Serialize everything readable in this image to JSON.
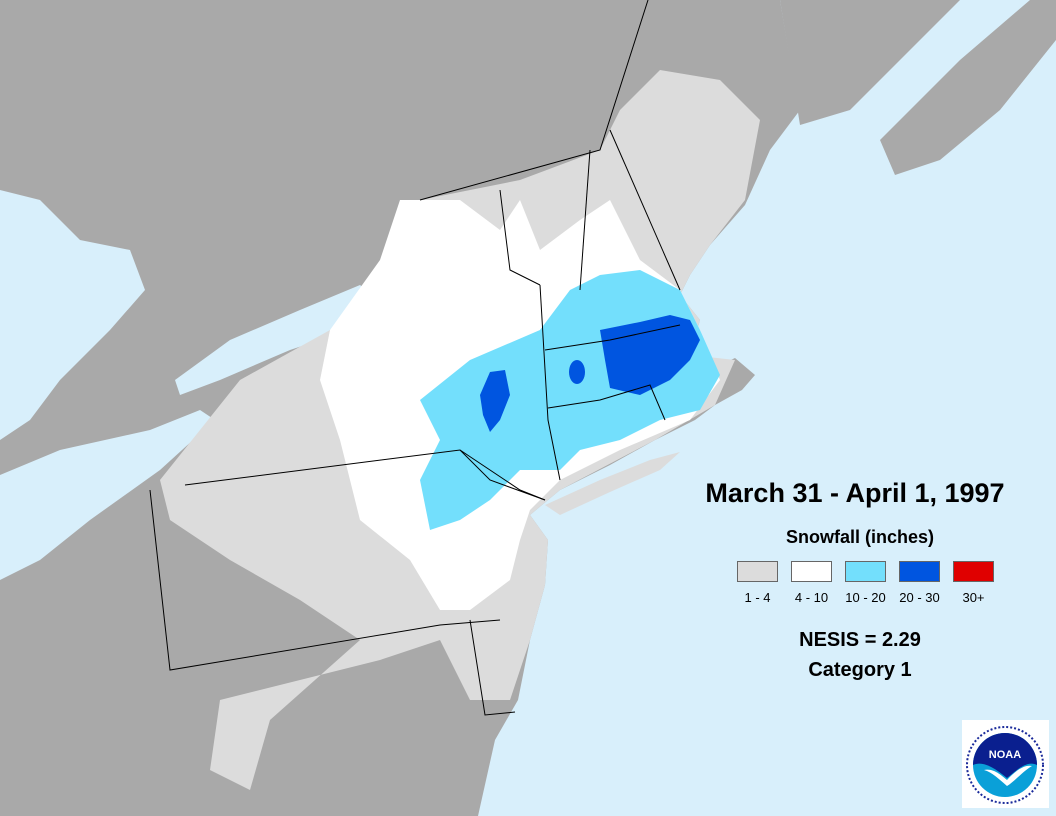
{
  "title": "March 31 - April 1, 1997",
  "legend": {
    "title": "Snowfall (inches)",
    "items": [
      {
        "label": "1 - 4",
        "color": "#dcdcdc"
      },
      {
        "label": "4 - 10",
        "color": "#ffffff"
      },
      {
        "label": "10 - 20",
        "color": "#73dffc"
      },
      {
        "label": "20 - 30",
        "color": "#0055e0"
      },
      {
        "label": "30+",
        "color": "#e00000"
      }
    ]
  },
  "nesis": {
    "value_text": "NESIS = 2.29",
    "category_text": "Category 1"
  },
  "logo": {
    "text": "NOAA"
  },
  "colors": {
    "ocean": "#d8effb",
    "land": "#a9a9a9",
    "border": "#000000"
  }
}
